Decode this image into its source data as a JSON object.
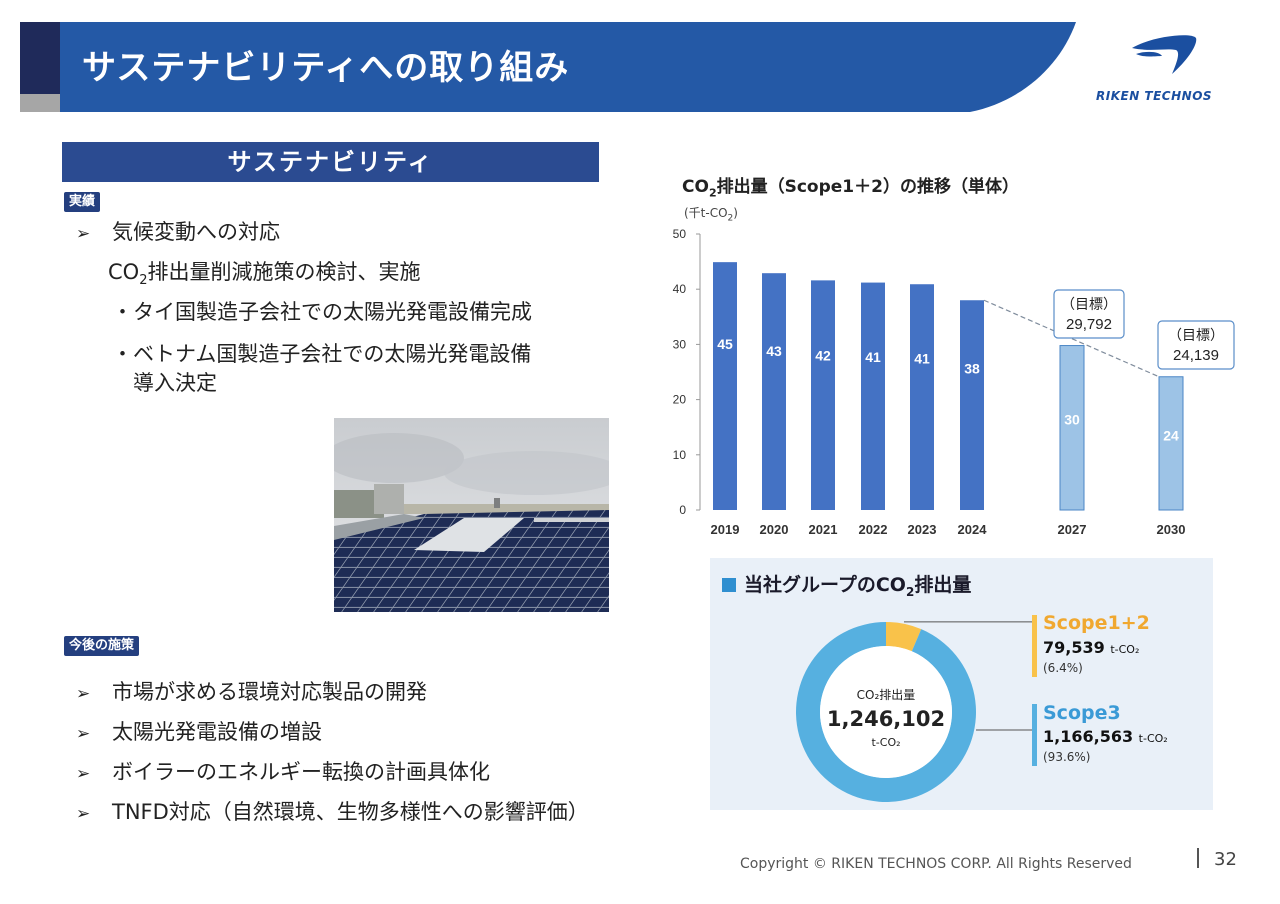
{
  "header": {
    "title": "サステナビリティへの取り組み",
    "logo_text": "RIKEN TECHNOS"
  },
  "section": {
    "heading": "サステナビリティ"
  },
  "results": {
    "badge": "実績",
    "item1": "気候変動への対応",
    "line2_prefix": "CO",
    "line2_sub": "2",
    "line2_suffix": "排出量削減施策の検討、実施",
    "line3": "・タイ国製造子会社での太陽光発電設備完成",
    "line4": "・ベトナム国製造子会社での太陽光発電設備",
    "line5": "導入決定"
  },
  "future": {
    "badge": "今後の施策",
    "items": [
      "市場が求める環境対応製品の開発",
      "太陽光発電設備の増設",
      "ボイラーのエネルギー転換の計画具体化",
      "TNFD対応（自然環境、生物多様性への影響評価）"
    ]
  },
  "chart_data": {
    "type": "bar",
    "title_prefix": "CO",
    "title_sub": "2",
    "title_suffix": "排出量（Scope1＋2）の推移（単体）",
    "unit_prefix": "(千t-CO",
    "unit_sub": "2",
    "unit_suffix": ")",
    "categories": [
      "2019",
      "2020",
      "2021",
      "2022",
      "2023",
      "2024",
      "2027",
      "2030"
    ],
    "values": [
      45,
      43,
      42,
      41,
      41,
      38,
      30,
      24
    ],
    "raw_values": [
      44.9,
      42.9,
      41.6,
      41.2,
      40.9,
      38.0,
      29.792,
      24.139
    ],
    "target_flags": [
      false,
      false,
      false,
      false,
      false,
      false,
      true,
      true
    ],
    "ylim": [
      0,
      50
    ],
    "yticks": [
      0,
      10,
      20,
      30,
      40,
      50
    ],
    "actual_color": "#4472c4",
    "target_color": "#9dc3e6",
    "targets": [
      {
        "label": "（目標）",
        "value": "29,792"
      },
      {
        "label": "（目標）",
        "value": "24,139"
      }
    ]
  },
  "group_emissions": {
    "heading_prefix": "当社グループのCO",
    "heading_sub": "2",
    "heading_suffix": "排出量",
    "center_label": "CO₂排出量",
    "center_value": "1,246,102",
    "center_unit": "t-CO₂",
    "segments": [
      {
        "name": "Scope1+2",
        "value": "79,539",
        "unit": "t-CO₂",
        "pct_text": "(6.4%)",
        "pct": 6.4,
        "color": "#f9c24a"
      },
      {
        "name": "Scope3",
        "value": "1,166,563",
        "unit": "t-CO₂",
        "pct_text": "(93.6%)",
        "pct": 93.6,
        "color": "#56b0e0"
      }
    ]
  },
  "footer": {
    "copyright": "Copyright © RIKEN TECHNOS CORP. All Rights Reserved",
    "page": "32"
  }
}
